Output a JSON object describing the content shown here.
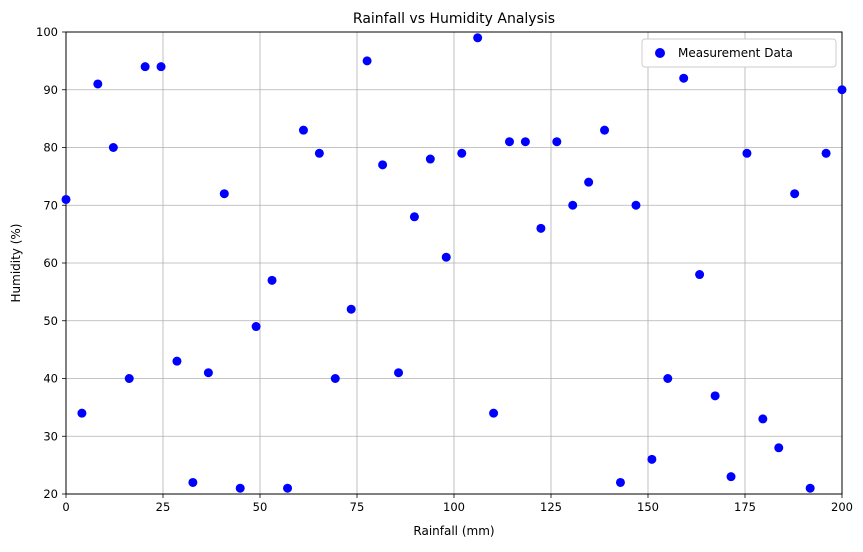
{
  "chart_data": {
    "type": "scatter",
    "title": "Rainfall vs Humidity Analysis",
    "xlabel": "Rainfall (mm)",
    "ylabel": "Humidity (%)",
    "xlim": [
      0,
      200
    ],
    "ylim": [
      20,
      100
    ],
    "xticks": [
      0,
      25,
      50,
      75,
      100,
      125,
      150,
      175,
      200
    ],
    "yticks": [
      20,
      30,
      40,
      50,
      60,
      70,
      80,
      90,
      100
    ],
    "grid": true,
    "legend_position": "top-right",
    "series": [
      {
        "name": "Measurement Data",
        "color": "#0000ff",
        "x": [
          0.0,
          4.1,
          8.2,
          12.2,
          16.3,
          20.4,
          24.5,
          28.6,
          32.7,
          36.7,
          40.8,
          44.9,
          49.0,
          53.1,
          57.1,
          61.2,
          65.3,
          69.4,
          73.5,
          77.6,
          81.6,
          85.7,
          89.8,
          93.9,
          98.0,
          102.0,
          106.1,
          110.2,
          114.3,
          118.4,
          122.4,
          126.5,
          130.6,
          134.7,
          138.8,
          142.9,
          146.9,
          151.0,
          155.1,
          159.2,
          163.3,
          167.3,
          171.4,
          175.5,
          179.6,
          183.7,
          187.8,
          191.8,
          195.9,
          200.0
        ],
        "y": [
          71,
          34,
          91,
          80,
          40,
          94,
          94,
          43,
          22,
          41,
          72,
          21,
          49,
          57,
          21,
          83,
          79,
          40,
          52,
          95,
          77,
          41,
          68,
          78,
          61,
          79,
          99,
          34,
          81,
          81,
          66,
          81,
          70,
          74,
          83,
          22,
          70,
          26,
          40,
          92,
          58,
          37,
          23,
          79,
          33,
          28,
          72,
          21,
          79,
          90
        ]
      }
    ]
  }
}
